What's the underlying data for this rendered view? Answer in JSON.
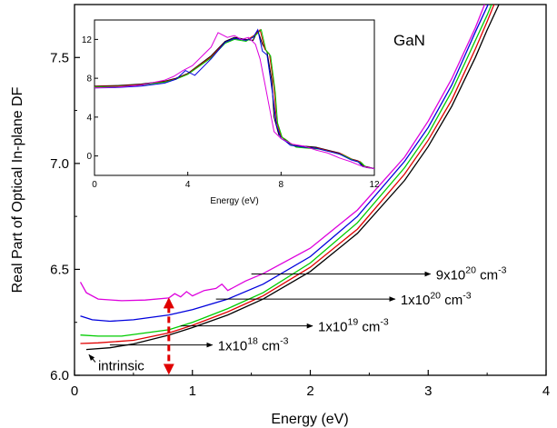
{
  "chart_data": [
    {
      "type": "line",
      "title": "",
      "xlabel": "Energy (eV)",
      "ylabel": "Real Part of Optical In-plane DF",
      "xlim": [
        0,
        4
      ],
      "ylim": [
        6.0,
        7.75
      ],
      "xticks": [
        0,
        1,
        2,
        3,
        4
      ],
      "yticks": [
        6.0,
        6.5,
        7.0,
        7.5
      ],
      "annotation": "GaN",
      "series": [
        {
          "name": "intrinsic",
          "color": "#000000",
          "x": [
            0.1,
            0.3,
            0.5,
            0.8,
            1.0,
            1.3,
            1.6,
            2.0,
            2.4,
            2.8,
            3.0,
            3.2,
            3.4,
            3.5,
            3.6,
            3.65
          ],
          "y": [
            6.122,
            6.13,
            6.148,
            6.19,
            6.225,
            6.285,
            6.36,
            6.49,
            6.67,
            6.92,
            7.08,
            7.27,
            7.5,
            7.63,
            7.75,
            7.8
          ]
        },
        {
          "name": "1x10^18 cm^-3",
          "color": "#e00000",
          "x": [
            0.05,
            0.2,
            0.5,
            0.8,
            1.0,
            1.3,
            1.6,
            2.0,
            2.4,
            2.8,
            3.0,
            3.2,
            3.4,
            3.5,
            3.58
          ],
          "y": [
            6.15,
            6.153,
            6.165,
            6.2,
            6.236,
            6.3,
            6.375,
            6.51,
            6.69,
            6.95,
            7.11,
            7.3,
            7.54,
            7.67,
            7.78
          ]
        },
        {
          "name": "1x10^19 cm^-3",
          "color": "#00cc00",
          "x": [
            0.05,
            0.2,
            0.4,
            0.8,
            1.0,
            1.3,
            1.6,
            2.0,
            2.4,
            2.8,
            3.0,
            3.2,
            3.4,
            3.5,
            3.56
          ],
          "y": [
            6.19,
            6.185,
            6.185,
            6.215,
            6.25,
            6.315,
            6.39,
            6.53,
            6.72,
            6.98,
            7.14,
            7.34,
            7.58,
            7.7,
            7.78
          ]
        },
        {
          "name": "1x10^20 cm^-3",
          "color": "#0000dd",
          "x": [
            0.05,
            0.15,
            0.3,
            0.5,
            0.8,
            1.0,
            1.3,
            1.6,
            2.0,
            2.4,
            2.8,
            3.0,
            3.2,
            3.4,
            3.5,
            3.55
          ],
          "y": [
            6.28,
            6.262,
            6.255,
            6.262,
            6.285,
            6.31,
            6.36,
            6.43,
            6.56,
            6.75,
            7.01,
            7.17,
            7.37,
            7.62,
            7.74,
            7.8
          ]
        },
        {
          "name": "9x10^20 cm^-3",
          "color": "#dd00dd",
          "x": [
            0.05,
            0.1,
            0.2,
            0.4,
            0.6,
            0.8,
            0.85,
            0.9,
            0.95,
            1.0,
            1.1,
            1.2,
            1.25,
            1.3,
            1.45,
            1.6,
            2.0,
            2.4,
            2.8,
            3.0,
            3.2,
            3.4,
            3.5
          ],
          "y": [
            6.44,
            6.39,
            6.36,
            6.352,
            6.355,
            6.365,
            6.385,
            6.37,
            6.395,
            6.375,
            6.4,
            6.41,
            6.43,
            6.4,
            6.445,
            6.48,
            6.6,
            6.78,
            7.03,
            7.2,
            7.4,
            7.64,
            7.78
          ]
        }
      ],
      "labels": [
        {
          "text": "intrinsic",
          "x": 0.2,
          "y": 6.045,
          "arrow_to": [
            0.1,
            6.11
          ]
        },
        {
          "text": "1x10^18 cm^-3",
          "x": 1.2,
          "y": 6.14,
          "arrow_from": [
            0.3,
            6.143
          ]
        },
        {
          "text": "1x10^19 cm^-3",
          "x": 2.05,
          "y": 6.23,
          "arrow_from": [
            0.9,
            6.233
          ]
        },
        {
          "text": "1x10^20 cm^-3",
          "x": 2.75,
          "y": 6.355,
          "arrow_from": [
            1.2,
            6.36
          ]
        },
        {
          "text": "9x10^20 cm^-3",
          "x": 3.05,
          "y": 6.475,
          "arrow_from": [
            1.5,
            6.478
          ]
        }
      ],
      "red_arrow": {
        "x": 0.8,
        "y_from": 6.2,
        "y_up": 6.37,
        "y_down": 6.0
      }
    },
    {
      "type": "line",
      "title": "",
      "xlabel": "Energy (eV)",
      "ylabel": "",
      "xlim": [
        0,
        12
      ],
      "ylim": [
        -2,
        14
      ],
      "xticks": [
        0,
        4,
        8,
        12
      ],
      "yticks": [
        0,
        4,
        8,
        12
      ],
      "series": [
        {
          "name": "intrinsic",
          "color": "#000000",
          "x": [
            0,
            1,
            2,
            3,
            3.5,
            4,
            5,
            5.6,
            6,
            6.5,
            6.8,
            7.0,
            7.2,
            7.4,
            7.6,
            7.7,
            7.9,
            8.1,
            8.3,
            8.5,
            9,
            9.5,
            10,
            10.5,
            11,
            11.3,
            11.5,
            12
          ],
          "y": [
            7.2,
            7.25,
            7.4,
            7.7,
            8.0,
            8.5,
            10.3,
            11.8,
            12.2,
            12.0,
            11.9,
            12.9,
            11.5,
            10.7,
            7.8,
            4.0,
            2.2,
            1.8,
            1.4,
            1.1,
            1.0,
            0.9,
            0.6,
            0.3,
            -0.3,
            -0.5,
            -1.0,
            -1.3
          ]
        },
        {
          "name": "1x10^18 cm^-3",
          "color": "#e00000",
          "x": [
            0,
            1,
            2,
            3,
            3.5,
            4,
            5,
            5.6,
            6,
            6.5,
            6.9,
            7.1,
            7.3,
            7.5,
            7.7,
            7.8,
            8.0,
            8.2,
            8.4,
            8.6,
            9.1,
            9.6,
            10.1,
            10.6,
            11.1,
            11.4,
            11.6,
            12
          ],
          "y": [
            7.15,
            7.2,
            7.35,
            7.65,
            7.95,
            8.45,
            10.2,
            11.7,
            12.1,
            11.9,
            12.5,
            13.0,
            11.0,
            10.5,
            7.0,
            3.6,
            2.0,
            1.7,
            1.3,
            1.0,
            0.9,
            0.8,
            0.5,
            0.2,
            -0.4,
            -0.6,
            -1.1,
            -1.3
          ]
        },
        {
          "name": "1x10^19 cm^-3",
          "color": "#00cc00",
          "x": [
            0,
            1,
            2,
            3,
            3.5,
            4,
            5,
            5.6,
            6,
            6.5,
            6.9,
            7.15,
            7.35,
            7.55,
            7.75,
            7.85,
            8.05,
            8.25,
            8.45,
            8.65,
            9.15,
            9.65,
            10.15,
            10.65,
            11.15,
            11.45,
            11.65,
            12
          ],
          "y": [
            7.1,
            7.15,
            7.3,
            7.6,
            7.9,
            8.4,
            10.1,
            11.6,
            12.0,
            11.8,
            12.4,
            13.0,
            10.9,
            10.3,
            6.6,
            3.4,
            1.9,
            1.6,
            1.2,
            0.9,
            0.8,
            0.7,
            0.4,
            0.1,
            -0.5,
            -0.7,
            -1.2,
            -1.3
          ]
        },
        {
          "name": "1x10^20 cm^-3",
          "color": "#0000dd",
          "x": [
            0,
            1,
            2,
            3,
            3.5,
            3.9,
            4.3,
            5,
            5.6,
            6,
            6.5,
            6.8,
            7.0,
            7.2,
            7.4,
            7.6,
            7.8,
            8.0,
            8.2,
            8.4,
            9,
            9.5,
            10,
            10.5,
            11,
            11.3,
            11.5,
            12
          ],
          "y": [
            7.0,
            7.05,
            7.2,
            7.5,
            7.9,
            8.8,
            8.3,
            10.0,
            11.7,
            12.1,
            11.9,
            12.2,
            13.0,
            10.8,
            10.4,
            7.0,
            3.2,
            1.8,
            1.5,
            1.1,
            0.9,
            0.8,
            0.5,
            0.2,
            -0.4,
            -0.6,
            -1.1,
            -1.3
          ]
        },
        {
          "name": "9x10^20 cm^-3",
          "color": "#dd00dd",
          "x": [
            0,
            1,
            2,
            3,
            3.4,
            3.8,
            4.2,
            5,
            5.3,
            5.7,
            6.0,
            6.3,
            6.6,
            6.9,
            7.1,
            7.3,
            7.5,
            7.7,
            8.0,
            8.5,
            9,
            9.5,
            10,
            10.5,
            11,
            11.4,
            11.7,
            12
          ],
          "y": [
            7.0,
            7.1,
            7.3,
            7.8,
            8.2,
            8.8,
            9.3,
            11.2,
            12.7,
            12.2,
            12.4,
            12.0,
            12.2,
            11.5,
            10.0,
            7.5,
            5.0,
            2.5,
            1.8,
            1.2,
            1.0,
            0.6,
            0.3,
            -0.2,
            -0.6,
            -1.0,
            -1.2,
            -1.3
          ]
        }
      ]
    }
  ],
  "labels": {
    "y_axis": "Real Part of Optical In-plane DF",
    "x_axis": "Energy (eV)",
    "material": "GaN",
    "intrinsic": "intrinsic",
    "inset_x_axis": "Energy (eV)"
  }
}
